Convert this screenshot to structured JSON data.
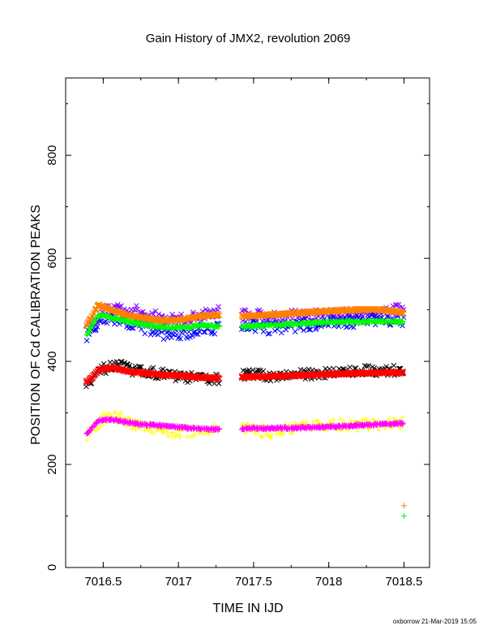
{
  "chart_data": {
    "type": "scatter",
    "title": "Gain History of JMX2, revolution 2069",
    "xlabel": "TIME IN IJD",
    "ylabel": "POSITION OF Cd CALIBRATION PEAKS",
    "xlim": [
      7016.25,
      7018.67
    ],
    "ylim": [
      0,
      950
    ],
    "x_ticks": [
      7016.5,
      7017,
      7017.5,
      7018,
      7018.5
    ],
    "x_tick_labels": [
      "7016.5",
      "7017",
      "7017.5",
      "7018",
      "7018.5"
    ],
    "y_ticks": [
      0,
      200,
      400,
      600,
      800
    ],
    "y_tick_labels": [
      "0",
      "200",
      "400",
      "600",
      "800"
    ],
    "grid": false,
    "data_gap": [
      7017.27,
      7017.42
    ],
    "series": [
      {
        "marker": "x",
        "color": "#7f00ff",
        "scatter": 12,
        "x": [
          7016.39,
          7016.5,
          7016.6,
          7016.7,
          7016.8,
          7016.9,
          7017.0,
          7017.1,
          7017.2,
          7017.27,
          7017.45,
          7017.6,
          7017.8,
          7018.0,
          7018.2,
          7018.4,
          7018.5
        ],
        "y": [
          462,
          495,
          505,
          498,
          490,
          482,
          480,
          485,
          493,
          495,
          490,
          488,
          487,
          490,
          492,
          497,
          500
        ]
      },
      {
        "marker": "x",
        "color": "#0000ff",
        "scatter": 12,
        "x": [
          7016.39,
          7016.5,
          7016.6,
          7016.7,
          7016.8,
          7016.9,
          7017.0,
          7017.1,
          7017.2,
          7017.27,
          7017.45,
          7017.6,
          7017.8,
          7018.0,
          7018.2,
          7018.4,
          7018.5
        ],
        "y": [
          448,
          483,
          478,
          470,
          462,
          455,
          452,
          460,
          465,
          465,
          472,
          465,
          470,
          475,
          478,
          482,
          480
        ]
      },
      {
        "marker": "x",
        "color": "#000000",
        "scatter": 10,
        "x": [
          7016.39,
          7016.5,
          7016.6,
          7016.7,
          7016.8,
          7016.9,
          7017.0,
          7017.1,
          7017.2,
          7017.27,
          7017.45,
          7017.6,
          7017.8,
          7018.0,
          7018.2,
          7018.4,
          7018.5
        ],
        "y": [
          360,
          385,
          392,
          382,
          380,
          375,
          370,
          368,
          366,
          366,
          375,
          372,
          374,
          378,
          382,
          383,
          383
        ]
      },
      {
        "marker": "+",
        "color": "#ffff00",
        "scatter": 12,
        "x": [
          7016.39,
          7016.5,
          7016.6,
          7016.7,
          7016.8,
          7016.9,
          7017.0,
          7017.1,
          7017.2,
          7017.27,
          7017.45,
          7017.6,
          7017.8,
          7018.0,
          7018.2,
          7018.4,
          7018.5
        ],
        "y": [
          255,
          288,
          292,
          276,
          272,
          266,
          262,
          265,
          268,
          268,
          272,
          262,
          270,
          278,
          275,
          280,
          280
        ]
      },
      {
        "marker": "x",
        "color": "#ff8000",
        "scatter": 2,
        "x": [
          7016.39,
          7016.47,
          7016.55,
          7016.65,
          7016.75,
          7016.85,
          7016.95,
          7017.05,
          7017.15,
          7017.27,
          7017.45,
          7017.6,
          7017.8,
          7018.0,
          7018.2,
          7018.35,
          7018.5
        ],
        "y": [
          470,
          510,
          500,
          490,
          485,
          480,
          480,
          482,
          488,
          490,
          488,
          490,
          494,
          498,
          500,
          500,
          495
        ]
      },
      {
        "marker": "+",
        "color": "#00ff00",
        "scatter": 2,
        "x": [
          7016.39,
          7016.47,
          7016.55,
          7016.65,
          7016.75,
          7016.85,
          7016.95,
          7017.05,
          7017.15,
          7017.27,
          7017.45,
          7017.6,
          7017.8,
          7018.0,
          7018.2,
          7018.35,
          7018.5
        ],
        "y": [
          452,
          490,
          485,
          478,
          472,
          468,
          465,
          466,
          470,
          468,
          468,
          470,
          473,
          476,
          477,
          478,
          476
        ]
      },
      {
        "marker": "x",
        "color": "#ff0000",
        "scatter": 2,
        "x": [
          7016.39,
          7016.47,
          7016.55,
          7016.65,
          7016.75,
          7016.85,
          7016.95,
          7017.05,
          7017.15,
          7017.27,
          7017.45,
          7017.6,
          7017.8,
          7018.0,
          7018.2,
          7018.35,
          7018.5
        ],
        "y": [
          360,
          383,
          388,
          382,
          378,
          375,
          373,
          371,
          369,
          367,
          370,
          371,
          373,
          375,
          377,
          378,
          378
        ]
      },
      {
        "marker": "+",
        "color": "#ff00ff",
        "scatter": 2,
        "x": [
          7016.39,
          7016.47,
          7016.55,
          7016.65,
          7016.75,
          7016.85,
          7016.95,
          7017.05,
          7017.15,
          7017.27,
          7017.45,
          7017.6,
          7017.8,
          7018.0,
          7018.2,
          7018.35,
          7018.5
        ],
        "y": [
          260,
          285,
          288,
          282,
          278,
          276,
          274,
          271,
          269,
          268,
          270,
          270,
          271,
          273,
          276,
          278,
          280
        ]
      }
    ],
    "legend_markers": [
      {
        "marker": "+",
        "color": "#ff8000",
        "x": 7018.5,
        "y": 120
      },
      {
        "marker": "+",
        "color": "#00ff00",
        "x": 7018.5,
        "y": 100
      }
    ]
  },
  "footer": "oxborrow 21-Mar-2019 15:05"
}
